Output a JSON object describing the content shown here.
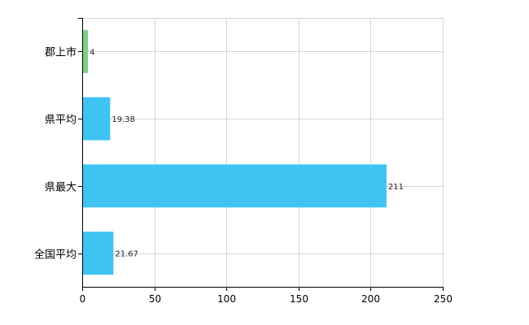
{
  "chart_data": {
    "type": "bar",
    "orientation": "horizontal",
    "categories": [
      "郡上市",
      "県平均",
      "県最大",
      "全国平均"
    ],
    "values": [
      4,
      19.38,
      211,
      21.67
    ],
    "value_labels": [
      "4",
      "19.38",
      "211",
      "21.67"
    ],
    "bar_colors": [
      "#7dcf86",
      "#3fc3f2",
      "#3fc3f2",
      "#3fc3f2"
    ],
    "xlim": [
      0,
      250
    ],
    "xticks": [
      0,
      50,
      100,
      150,
      200,
      250
    ],
    "xtick_labels": [
      "0",
      "50",
      "100",
      "150",
      "200",
      "250"
    ],
    "grid": true,
    "legend": "none",
    "title": "",
    "xlabel": "",
    "ylabel": ""
  }
}
